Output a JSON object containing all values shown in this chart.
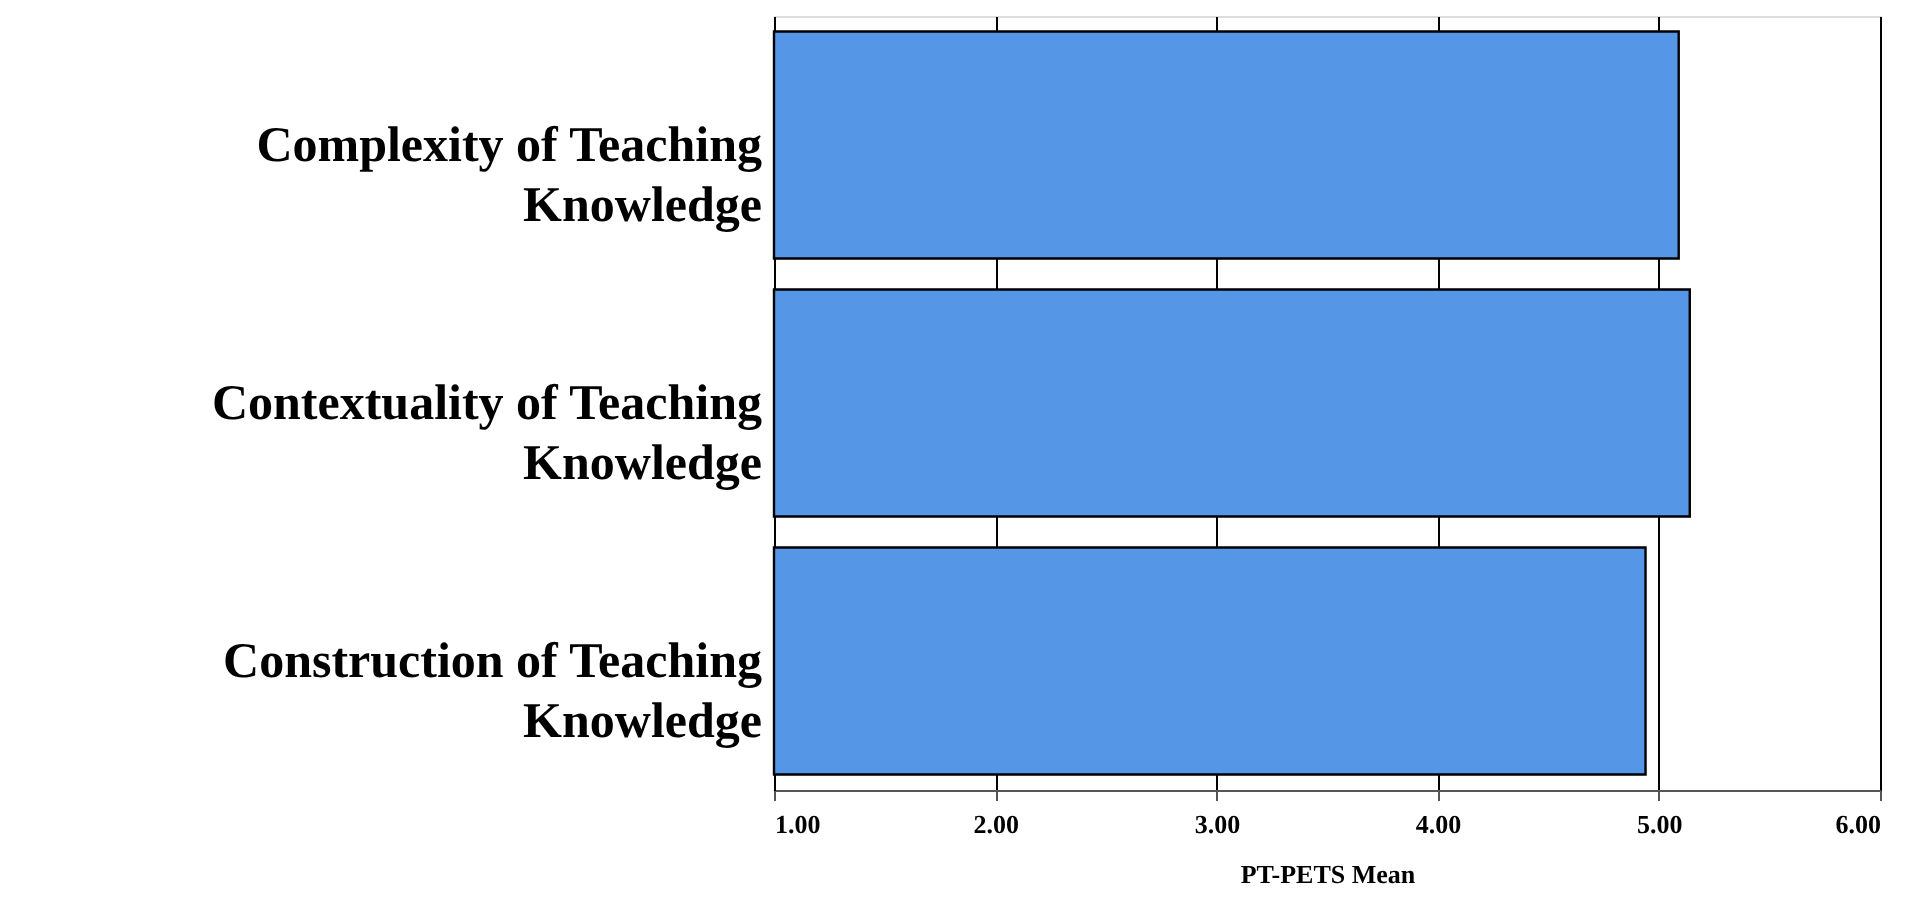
{
  "chart_data": {
    "type": "bar",
    "orientation": "horizontal",
    "xlabel": "PT-PETS Mean",
    "categories": [
      "Complexity of Teaching Knowledge",
      "Contextuality of Teaching Knowledge",
      "Construction of Teaching Knowledge"
    ],
    "values": [
      5.09,
      5.14,
      4.94
    ],
    "color": "#5596e6",
    "xlim": [
      1,
      6
    ],
    "xticks": [
      {
        "value": 1,
        "label": "1.00"
      },
      {
        "value": 2,
        "label": "2.00"
      },
      {
        "value": 3,
        "label": "3.00"
      },
      {
        "value": 4,
        "label": "4.00"
      },
      {
        "value": 5,
        "label": "5.00"
      },
      {
        "value": 6,
        "label": "6.00"
      }
    ],
    "grid": "x"
  }
}
